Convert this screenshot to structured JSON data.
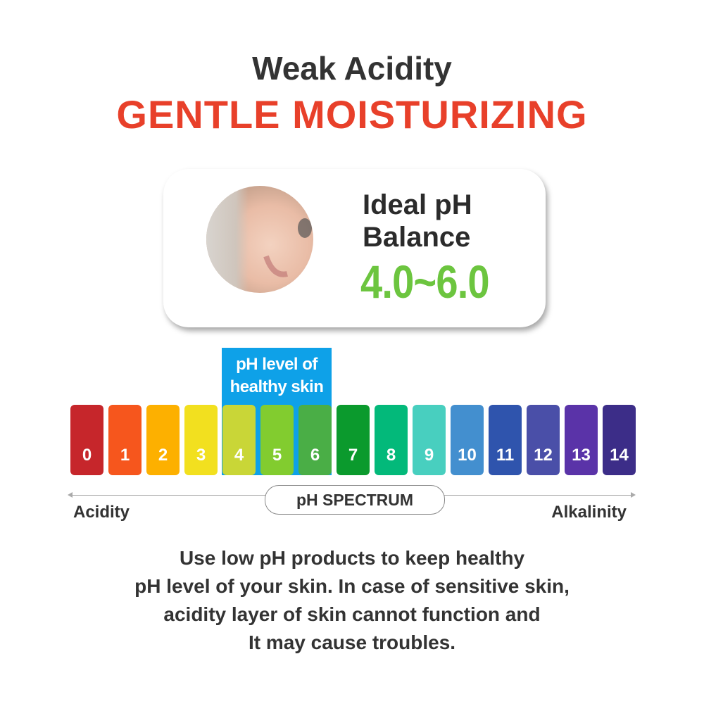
{
  "header": {
    "subtitle": "Weak Acidity",
    "title": "GENTLE MOISTURIZING",
    "title_color": "#e8402a"
  },
  "card": {
    "line1": "Ideal pH",
    "line2": "Balance",
    "range": "4.0~6.0",
    "range_color": "#6cc53f",
    "image": "baby-photo"
  },
  "healthy_label": {
    "line1": "pH level of",
    "line2": "healthy skin",
    "color": "#0ea1e8",
    "range": [
      4,
      6
    ]
  },
  "scale": [
    {
      "label": "0",
      "color": "#c6262b"
    },
    {
      "label": "1",
      "color": "#f6561d"
    },
    {
      "label": "2",
      "color": "#fdb000"
    },
    {
      "label": "3",
      "color": "#f2e01f"
    },
    {
      "label": "4",
      "color": "#c9d637"
    },
    {
      "label": "5",
      "color": "#82cc2f"
    },
    {
      "label": "6",
      "color": "#4aae46"
    },
    {
      "label": "7",
      "color": "#0b9a2d"
    },
    {
      "label": "8",
      "color": "#03b97a"
    },
    {
      "label": "9",
      "color": "#48cfbf"
    },
    {
      "label": "10",
      "color": "#438fcf"
    },
    {
      "label": "11",
      "color": "#2f54ad"
    },
    {
      "label": "12",
      "color": "#4a4fa8"
    },
    {
      "label": "13",
      "color": "#5a33a8"
    },
    {
      "label": "14",
      "color": "#3c2d88"
    }
  ],
  "spectrum": {
    "label": "pH SPECTRUM",
    "left": "Acidity",
    "right": "Alkalinity"
  },
  "description": [
    "Use low pH products to keep healthy",
    "pH level of your skin. In case of sensitive skin,",
    "acidity layer of skin cannot function and",
    "It may cause troubles."
  ]
}
